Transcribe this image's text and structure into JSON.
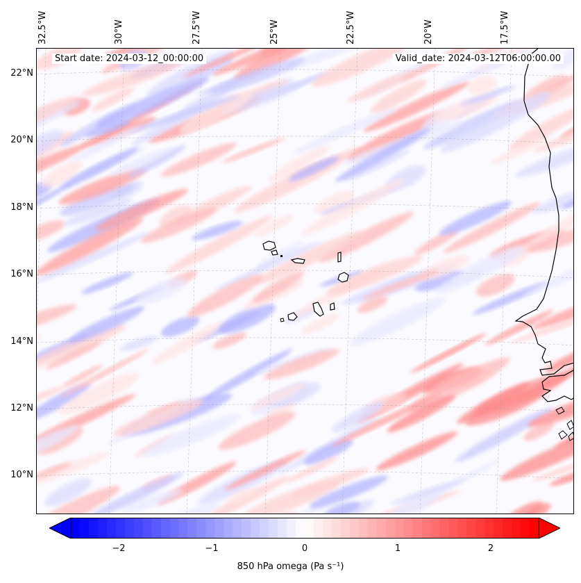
{
  "header": {
    "start_date": "Start date: 2024-03-12_00:00:00",
    "valid_date": "Valid_date: 2024-03-12T06:00:00.00"
  },
  "axes": {
    "lon_labels": [
      "32.5°W",
      "30°W",
      "27.5°W",
      "25°W",
      "22.5°W",
      "20°W",
      "17.5°W"
    ],
    "lat_labels": [
      "22°N",
      "20°N",
      "18°N",
      "16°N",
      "14°N",
      "12°N",
      "10°N"
    ]
  },
  "map": {
    "field": "850 hPa omega",
    "lon_range": [
      -33,
      -15.9
    ],
    "lat_range": [
      8.8,
      22.8
    ],
    "features": [
      "cape-verde-islands",
      "west-africa-coastline"
    ]
  },
  "colorbar": {
    "label": "850 hPa omega (Pa s⁻¹)",
    "ticks": [
      "−2",
      "−1",
      "0",
      "1",
      "2"
    ],
    "range": [
      -2.6,
      2.6
    ],
    "colormap": "bwr",
    "low_color": "#0000ff",
    "mid_color": "#ffffff",
    "high_color": "#ff0000"
  }
}
